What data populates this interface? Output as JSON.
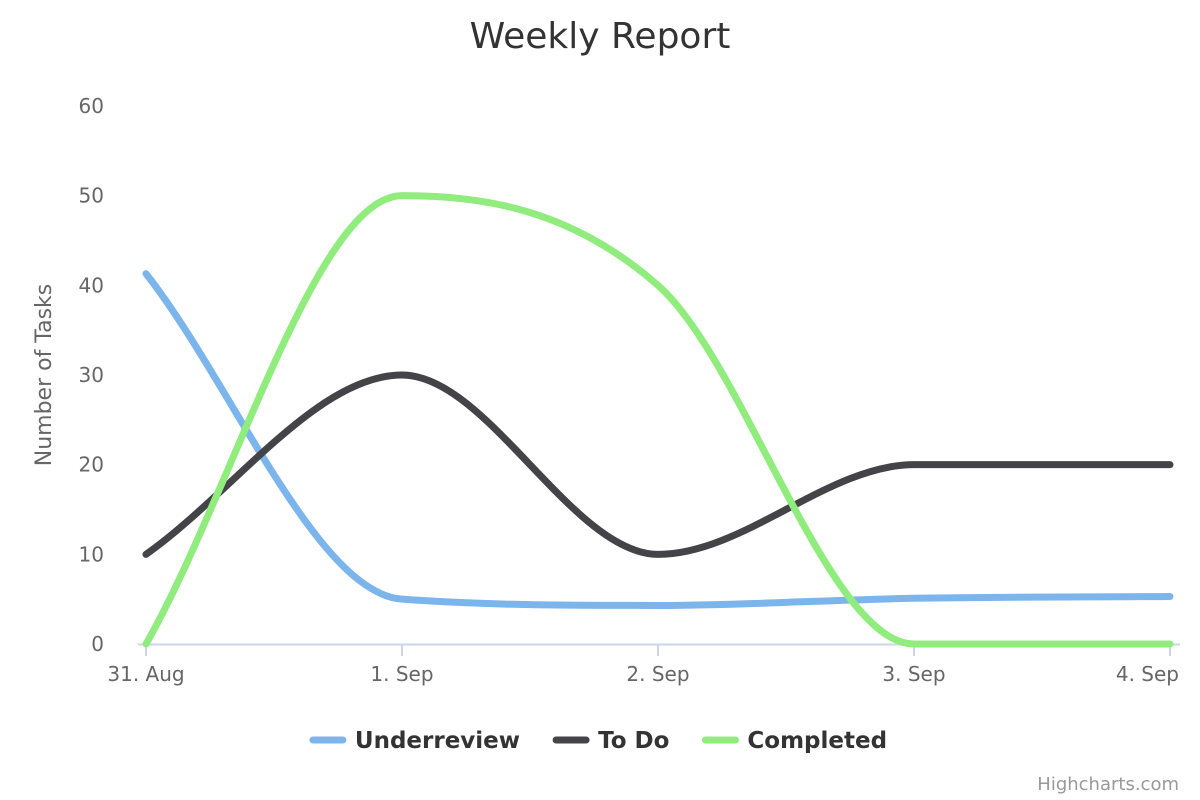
{
  "chart_data": {
    "type": "line",
    "title": "Weekly Report",
    "xlabel": "",
    "ylabel": "Number of Tasks",
    "categories": [
      "31. Aug",
      "1. Sep",
      "2. Sep",
      "3. Sep",
      "4. Sep"
    ],
    "y_ticks": [
      "0",
      "10",
      "20",
      "30",
      "40",
      "50",
      "60"
    ],
    "ylim": [
      0,
      60
    ],
    "grid": false,
    "curve": "smooth spline",
    "legend_position": "bottom-center",
    "series": [
      {
        "name": "Underreview",
        "color": "#7cb5ec",
        "values": [
          41.3,
          5,
          4.3,
          5.1,
          5.3
        ]
      },
      {
        "name": "To Do",
        "color": "#434348",
        "values": [
          10,
          30,
          10,
          20,
          20
        ]
      },
      {
        "name": "Completed",
        "color": "#90ed7d",
        "values": [
          0,
          50,
          40,
          0,
          0
        ]
      }
    ]
  },
  "credits": "Highcharts.com",
  "colors": {
    "axis_line": "#ccd6eb",
    "text": "#666666",
    "title": "#333333"
  }
}
